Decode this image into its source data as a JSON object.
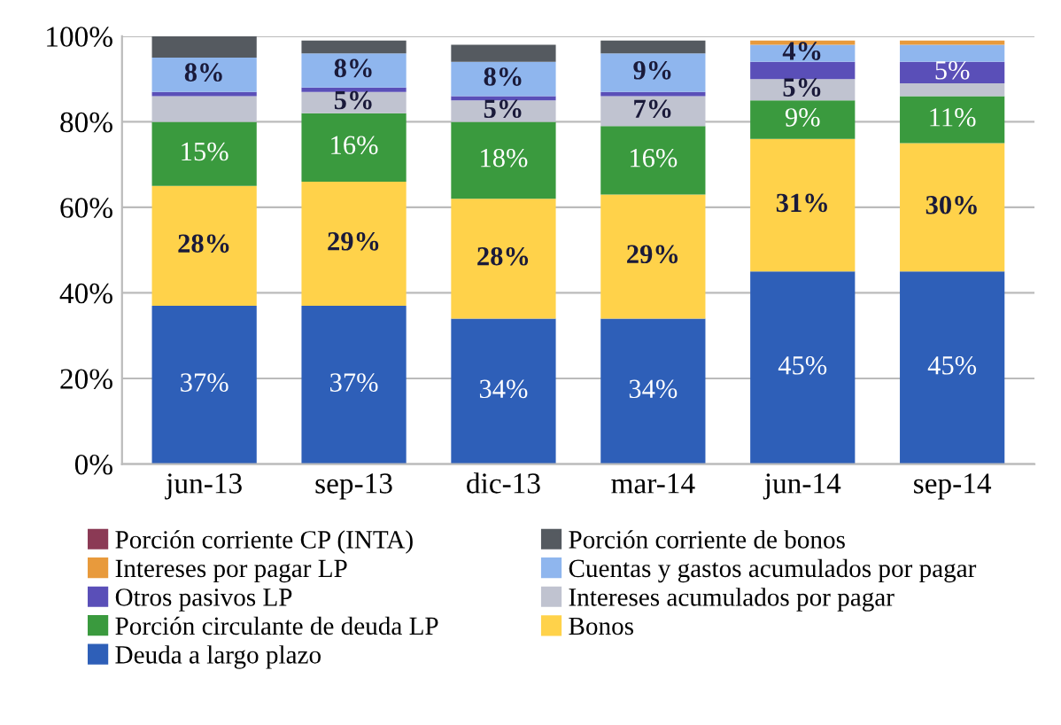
{
  "chart_data": {
    "type": "bar",
    "stacked": true,
    "categories": [
      "jun-13",
      "sep-13",
      "dic-13",
      "mar-14",
      "jun-14",
      "sep-14"
    ],
    "series": [
      {
        "name": "Deuda a largo plazo",
        "color": "#2e5fb8",
        "values": [
          37,
          37,
          34,
          34,
          45,
          45
        ],
        "value_labels": [
          "37%",
          "37%",
          "34%",
          "34%",
          "45%",
          "45%"
        ]
      },
      {
        "name": "Bonos",
        "color": "#ffd24a",
        "values": [
          28,
          29,
          28,
          29,
          31,
          30
        ],
        "value_labels": [
          "28%",
          "29%",
          "28%",
          "29%",
          "31%",
          "30%"
        ]
      },
      {
        "name": "Porción circulante de deuda LP",
        "color": "#3a9a3e",
        "values": [
          15,
          16,
          18,
          16,
          9,
          11
        ],
        "value_labels": [
          "15%",
          "16%",
          "18%",
          "16%",
          "9%",
          "11%"
        ]
      },
      {
        "name": "Intereses acumulados por pagar",
        "color": "#c0c3d0",
        "values": [
          6,
          5,
          5,
          7,
          5,
          3
        ],
        "value_labels": [
          null,
          "5%",
          "5%",
          "7%",
          "5%",
          null
        ]
      },
      {
        "name": "Otros pasivos LP",
        "color": "#5a4fb8",
        "values": [
          1,
          1,
          1,
          1,
          4,
          5
        ],
        "value_labels": [
          null,
          null,
          null,
          null,
          null,
          "5%"
        ]
      },
      {
        "name": "Cuentas y gastos acumulados por pagar",
        "color": "#8fb6ee",
        "values": [
          8,
          8,
          8,
          9,
          4,
          4
        ],
        "value_labels": [
          "8%",
          "8%",
          "8%",
          "9%",
          "4%",
          null
        ]
      },
      {
        "name": "Intereses por pagar LP",
        "color": "#e89a3c",
        "values": [
          null,
          null,
          null,
          null,
          1,
          1
        ]
      },
      {
        "name": "Porción corriente de bonos",
        "color": "#555a60",
        "values": [
          5,
          3,
          4,
          3,
          null,
          null
        ]
      },
      {
        "name": "Porción corriente CP (INTA)",
        "color": "#8b3a55",
        "values": [
          null,
          null,
          null,
          null,
          null,
          null
        ]
      }
    ],
    "ylim": [
      0,
      100
    ],
    "yticks": [
      {
        "value": 0,
        "label": "0%"
      },
      {
        "value": 20,
        "label": "20%"
      },
      {
        "value": 40,
        "label": "40%"
      },
      {
        "value": 60,
        "label": "60%"
      },
      {
        "value": 80,
        "label": "80%"
      },
      {
        "value": 100,
        "label": "100%"
      }
    ],
    "grid": "y",
    "legend": "bottom"
  }
}
